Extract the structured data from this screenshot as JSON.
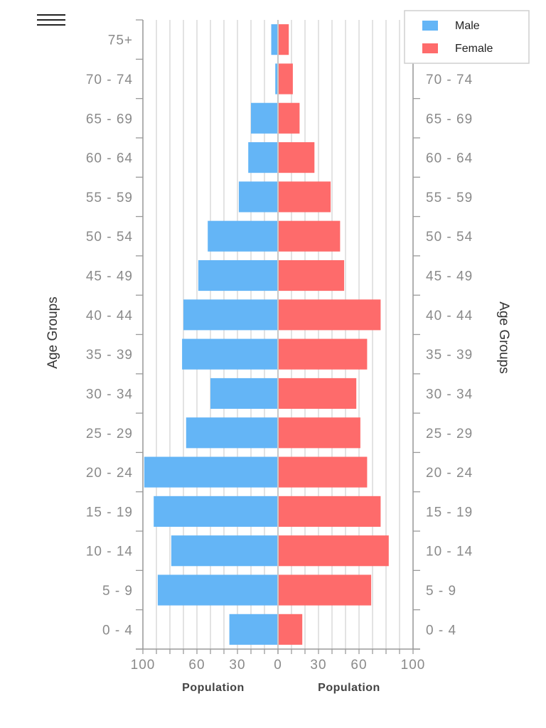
{
  "chart_data": {
    "type": "bar",
    "orientation": "horizontal-population-pyramid",
    "categories": [
      "0 - 4",
      "5 - 9",
      "10 - 14",
      "15 - 19",
      "20 - 24",
      "25 - 29",
      "30 - 34",
      "35 - 39",
      "40 - 44",
      "45 - 49",
      "50 - 54",
      "55 - 59",
      "60 - 64",
      "65 - 69",
      "70 - 74",
      "75+"
    ],
    "series": [
      {
        "name": "Male",
        "color": "#64b5f6",
        "values": [
          36,
          89,
          79,
          92,
          99,
          68,
          50,
          71,
          70,
          59,
          52,
          29,
          22,
          20,
          2,
          5
        ]
      },
      {
        "name": "Female",
        "color": "#fe6b6b",
        "values": [
          18,
          69,
          82,
          76,
          66,
          61,
          58,
          66,
          76,
          49,
          46,
          39,
          27,
          16,
          11,
          8
        ]
      }
    ],
    "left_xaxis": {
      "label": "Population",
      "range": [
        100,
        0
      ],
      "ticks": [
        "100",
        "60",
        "30",
        "0"
      ],
      "tick_values": [
        100,
        60,
        30,
        0
      ]
    },
    "right_xaxis": {
      "label": "Population",
      "range": [
        0,
        100
      ],
      "ticks": [
        "0",
        "30",
        "60",
        "100"
      ],
      "tick_values": [
        0,
        30,
        60,
        100
      ]
    },
    "left_ylabel": "Age Groups",
    "right_ylabel": "Age Groups",
    "grid": true,
    "grid_step": 10,
    "legend": {
      "position": "top-right",
      "entries": [
        "Male",
        "Female"
      ]
    }
  }
}
